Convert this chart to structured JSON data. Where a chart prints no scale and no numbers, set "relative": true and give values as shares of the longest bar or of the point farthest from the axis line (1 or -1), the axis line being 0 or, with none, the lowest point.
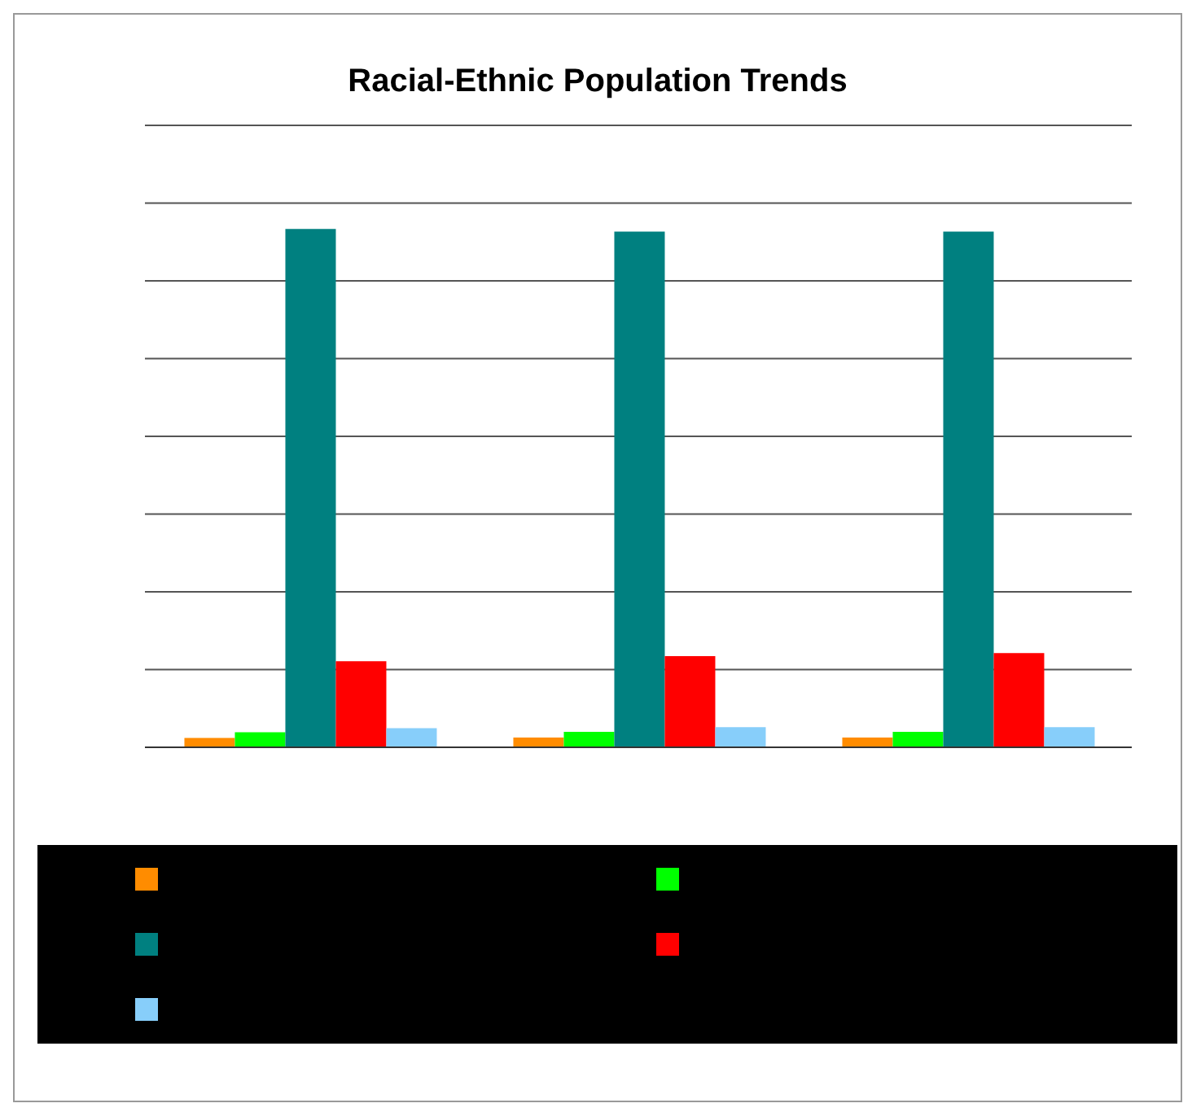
{
  "chart_data": {
    "type": "bar",
    "title": "Racial-Ethnic Population Trends",
    "relative": true,
    "categories": [
      null,
      null,
      null
    ],
    "grid": "y",
    "series": [
      {
        "color": "#ff8c00",
        "values": [
          0.018,
          0.019,
          0.019
        ]
      },
      {
        "color": "#00ff00",
        "values": [
          0.029,
          0.03,
          0.03
        ]
      },
      {
        "color": "#008080",
        "values": [
          1,
          0.995,
          0.995
        ]
      },
      {
        "color": "#ff0000",
        "values": [
          0.166,
          0.176,
          0.182
        ]
      },
      {
        "color": "#87cefa",
        "values": [
          0.037,
          0.039,
          0.039
        ]
      }
    ]
  }
}
